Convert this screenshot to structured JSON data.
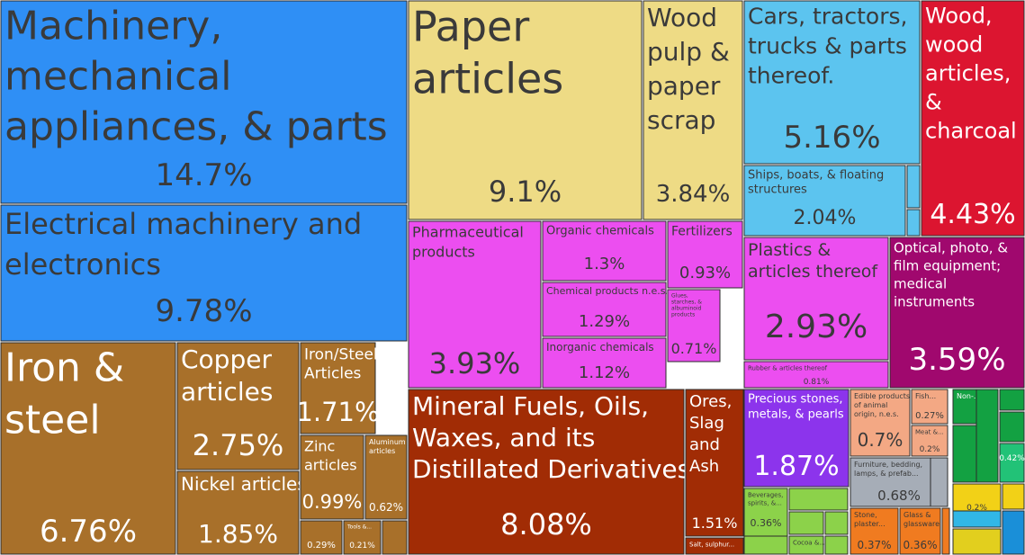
{
  "chart_data": {
    "type": "treemap",
    "unit": "%",
    "tiles": [
      {
        "label": "Machinery, mechanical appliances, & parts",
        "lines": [
          "Machinery,",
          "mechanical",
          "appliances, & parts"
        ],
        "value": 14.7,
        "value_text": "14.7%",
        "color": "#2f8ff5",
        "text_color": "#3a3a3a"
      },
      {
        "label": "Electrical machinery and electronics",
        "lines": [
          "Electrical machinery and",
          "electronics"
        ],
        "value": 9.78,
        "value_text": "9.78%",
        "color": "#2f8ff5",
        "text_color": "#3a3a3a"
      },
      {
        "label": "Iron & steel",
        "lines": [
          "Iron &",
          "steel"
        ],
        "value": 6.76,
        "value_text": "6.76%",
        "color": "#a8702a",
        "text_color": "#ffffff"
      },
      {
        "label": "Copper articles",
        "lines": [
          "Copper",
          "articles"
        ],
        "value": 2.75,
        "value_text": "2.75%",
        "color": "#a8702a",
        "text_color": "#ffffff"
      },
      {
        "label": "Nickel articles",
        "lines": [
          "Nickel articles"
        ],
        "value": 1.85,
        "value_text": "1.85%",
        "color": "#a8702a",
        "text_color": "#ffffff"
      },
      {
        "label": "Iron/Steel Articles",
        "lines": [
          "Iron/Steel",
          "Articles"
        ],
        "value": 1.71,
        "value_text": "1.71%",
        "color": "#a8702a",
        "text_color": "#ffffff"
      },
      {
        "label": "Zinc articles",
        "lines": [
          "Zinc",
          "articles"
        ],
        "value": 0.99,
        "value_text": "0.99%",
        "color": "#a8702a",
        "text_color": "#ffffff"
      },
      {
        "label": "Aluminum articles",
        "lines": [
          "Aluminum",
          "articles"
        ],
        "value": 0.62,
        "value_text": "0.62%",
        "color": "#a8702a",
        "text_color": "#ffffff"
      },
      {
        "label": "",
        "lines": [],
        "value": 0.29,
        "value_text": "0.29%",
        "color": "#a8702a",
        "text_color": "#ffffff"
      },
      {
        "label": "Tools &...",
        "lines": [
          "Tools &..."
        ],
        "value": 0.21,
        "value_text": "0.21%",
        "color": "#a8702a",
        "text_color": "#ffffff"
      },
      {
        "label": "",
        "lines": [],
        "value": null,
        "value_text": "",
        "color": "#a8702a",
        "text_color": "#ffffff"
      },
      {
        "label": "Paper articles",
        "lines": [
          "Paper",
          "articles"
        ],
        "value": 9.1,
        "value_text": "9.1%",
        "color": "#eedb85",
        "text_color": "#3a3a3a"
      },
      {
        "label": "Wood pulp & paper scrap",
        "lines": [
          "Wood",
          "pulp &",
          "paper",
          "scrap"
        ],
        "value": 3.84,
        "value_text": "3.84%",
        "color": "#eedb85",
        "text_color": "#3a3a3a"
      },
      {
        "label": "Cars, tractors, trucks & parts thereof.",
        "lines": [
          "Cars, tractors,",
          "trucks & parts",
          "thereof."
        ],
        "value": 5.16,
        "value_text": "5.16%",
        "color": "#5cc4ef",
        "text_color": "#3a3a3a"
      },
      {
        "label": "Ships, boats, & floating structures",
        "lines": [
          "Ships, boats, & floating",
          "structures"
        ],
        "value": 2.04,
        "value_text": "2.04%",
        "color": "#5cc4ef",
        "text_color": "#3a3a3a"
      },
      {
        "label": "",
        "lines": [],
        "value": null,
        "value_text": "",
        "color": "#5cc4ef",
        "text_color": "#3a3a3a"
      },
      {
        "label": "",
        "lines": [],
        "value": null,
        "value_text": "",
        "color": "#5cc4ef",
        "text_color": "#3a3a3a"
      },
      {
        "label": "Wood, wood articles, & charcoal",
        "lines": [
          "Wood,",
          "wood",
          "articles,",
          "&",
          "charcoal"
        ],
        "value": 4.43,
        "value_text": "4.43%",
        "color": "#dc1530",
        "text_color": "#ffffff"
      },
      {
        "label": "Pharmaceutical products",
        "lines": [
          "Pharmaceutical",
          "products"
        ],
        "value": 3.93,
        "value_text": "3.93%",
        "color": "#ec4ef0",
        "text_color": "#3a3a3a"
      },
      {
        "label": "Organic chemicals",
        "lines": [
          "Organic chemicals"
        ],
        "value": 1.3,
        "value_text": "1.3%",
        "color": "#ec4ef0",
        "text_color": "#3a3a3a"
      },
      {
        "label": "Chemical products n.e.s.",
        "lines": [
          "Chemical products n.e.s."
        ],
        "value": 1.29,
        "value_text": "1.29%",
        "color": "#ec4ef0",
        "text_color": "#3a3a3a"
      },
      {
        "label": "Inorganic chemicals",
        "lines": [
          "Inorganic chemicals"
        ],
        "value": 1.12,
        "value_text": "1.12%",
        "color": "#ec4ef0",
        "text_color": "#3a3a3a"
      },
      {
        "label": "Fertilizers",
        "lines": [
          "Fertilizers"
        ],
        "value": 0.93,
        "value_text": "0.93%",
        "color": "#ec4ef0",
        "text_color": "#3a3a3a"
      },
      {
        "label": "Glues, starches, & albuminoid products",
        "lines": [
          "Glues,",
          "starches, &",
          "albuminoid",
          "products"
        ],
        "value": 0.71,
        "value_text": "0.71%",
        "color": "#ec4ef0",
        "text_color": "#3a3a3a"
      },
      {
        "label": "Plastics & articles thereof",
        "lines": [
          "Plastics &",
          "articles thereof"
        ],
        "value": 2.93,
        "value_text": "2.93%",
        "color": "#ec4ef0",
        "text_color": "#3a3a3a"
      },
      {
        "label": "Rubber & articles thereof",
        "lines": [
          "Rubber & articles thereof"
        ],
        "value": 0.81,
        "value_text": "0.81%",
        "color": "#ec4ef0",
        "text_color": "#3a3a3a"
      },
      {
        "label": "Optical, photo, & film equipment; medical instruments",
        "lines": [
          "Optical, photo, &",
          "film equipment;",
          "medical",
          "instruments"
        ],
        "value": 3.59,
        "value_text": "3.59%",
        "color": "#a0086e",
        "text_color": "#ffffff"
      },
      {
        "label": "Mineral Fuels, Oils, Waxes, and its Distillated Derivatives",
        "lines": [
          "Mineral Fuels, Oils,",
          "Waxes, and its",
          "Distillated Derivatives"
        ],
        "value": 8.08,
        "value_text": "8.08%",
        "color": "#a12c05",
        "text_color": "#ffffff"
      },
      {
        "label": "Ores, Slag and Ash",
        "lines": [
          "Ores,",
          "Slag",
          "and",
          "Ash"
        ],
        "value": 1.51,
        "value_text": "1.51%",
        "color": "#a12c05",
        "text_color": "#ffffff"
      },
      {
        "label": "Salt, sulphur...",
        "lines": [
          "Salt, sulphur..."
        ],
        "value": null,
        "value_text": "",
        "color": "#a12c05",
        "text_color": "#ffffff"
      },
      {
        "label": "Precious stones, metals, & pearls",
        "lines": [
          "Precious stones,",
          "metals, & pearls"
        ],
        "value": 1.87,
        "value_text": "1.87%",
        "color": "#8c34ec",
        "text_color": "#ffffff"
      },
      {
        "label": "Edible products of animal origin, n.e.s.",
        "lines": [
          "Edible products",
          "of animal",
          "origin, n.e.s."
        ],
        "value": 0.7,
        "value_text": "0.7%",
        "color": "#f3a884",
        "text_color": "#3a3a3a"
      },
      {
        "label": "Fish...",
        "lines": [
          "Fish..."
        ],
        "value": 0.27,
        "value_text": "0.27%",
        "color": "#f3a884",
        "text_color": "#3a3a3a"
      },
      {
        "label": "Meat &...",
        "lines": [
          "Meat &..."
        ],
        "value": 0.2,
        "value_text": "0.2%",
        "color": "#f3a884",
        "text_color": "#3a3a3a"
      },
      {
        "label": "Furniture, bedding, lamps, & prefab...",
        "lines": [
          "Furniture, bedding,",
          "lamps, & prefab..."
        ],
        "value": 0.68,
        "value_text": "0.68%",
        "color": "#a6adb7",
        "text_color": "#3a3a3a"
      },
      {
        "label": "",
        "lines": [],
        "value": null,
        "value_text": "",
        "color": "#a6adb7",
        "text_color": "#3a3a3a"
      },
      {
        "label": "Stone, plaster...",
        "lines": [
          "Stone,",
          "plaster..."
        ],
        "value": 0.37,
        "value_text": "0.37%",
        "color": "#f07b20",
        "text_color": "#3a3a3a"
      },
      {
        "label": "Glass & glassware",
        "lines": [
          "Glass &",
          "glassware"
        ],
        "value": 0.36,
        "value_text": "0.36%",
        "color": "#f07b20",
        "text_color": "#3a3a3a"
      },
      {
        "label": "",
        "lines": [],
        "value": null,
        "value_text": "",
        "color": "#f07b20",
        "text_color": "#3a3a3a"
      },
      {
        "label": "Beverages, spirits, &...",
        "lines": [
          "Beverages,",
          "spirits, &..."
        ],
        "value": 0.36,
        "value_text": "0.36%",
        "color": "#8cd24a",
        "text_color": "#3a3a3a"
      },
      {
        "label": "",
        "lines": [],
        "value": null,
        "value_text": "",
        "color": "#8cd24a",
        "text_color": "#3a3a3a"
      },
      {
        "label": "",
        "lines": [],
        "value": null,
        "value_text": "",
        "color": "#8cd24a",
        "text_color": "#3a3a3a"
      },
      {
        "label": "",
        "lines": [],
        "value": null,
        "value_text": "",
        "color": "#8cd24a",
        "text_color": "#3a3a3a"
      },
      {
        "label": "Cocoa &...",
        "lines": [
          "Cocoa &..."
        ],
        "value": null,
        "value_text": "",
        "color": "#8cd24a",
        "text_color": "#3a3a3a"
      },
      {
        "label": "",
        "lines": [],
        "value": null,
        "value_text": "",
        "color": "#8cd24a",
        "text_color": "#3a3a3a"
      },
      {
        "label": "",
        "lines": [],
        "value": null,
        "value_text": "",
        "color": "#8cd24a",
        "text_color": "#3a3a3a"
      },
      {
        "label": "Non-...",
        "lines": [
          "Non-..."
        ],
        "value": null,
        "value_text": "",
        "color": "#13a142",
        "text_color": "#ffffff"
      },
      {
        "label": "",
        "lines": [],
        "value": null,
        "value_text": "",
        "color": "#13a142",
        "text_color": "#ffffff"
      },
      {
        "label": "",
        "lines": [],
        "value": null,
        "value_text": "",
        "color": "#13a142",
        "text_color": "#ffffff"
      },
      {
        "label": "",
        "lines": [],
        "value": null,
        "value_text": "",
        "color": "#13a142",
        "text_color": "#ffffff"
      },
      {
        "label": "",
        "lines": [],
        "value": null,
        "value_text": "",
        "color": "#13a142",
        "text_color": "#ffffff"
      },
      {
        "label": "",
        "lines": [],
        "value": 0.42,
        "value_text": "0.42%",
        "color": "#22c277",
        "text_color": "#ffffff"
      },
      {
        "label": "",
        "lines": [],
        "value": 0.2,
        "value_text": "0.2%",
        "color": "#f2d117",
        "text_color": "#3a3a3a"
      },
      {
        "label": "",
        "lines": [],
        "value": null,
        "value_text": "",
        "color": "#f2d117",
        "text_color": "#3a3a3a"
      },
      {
        "label": "",
        "lines": [],
        "value": null,
        "value_text": "",
        "color": "#e2cf1e",
        "text_color": "#3a3a3a"
      },
      {
        "label": "",
        "lines": [],
        "value": null,
        "value_text": "",
        "color": "#1a8fd8",
        "text_color": "#ffffff"
      },
      {
        "label": "",
        "lines": [],
        "value": null,
        "value_text": "",
        "color": "#31b7e6",
        "text_color": "#ffffff"
      }
    ]
  }
}
